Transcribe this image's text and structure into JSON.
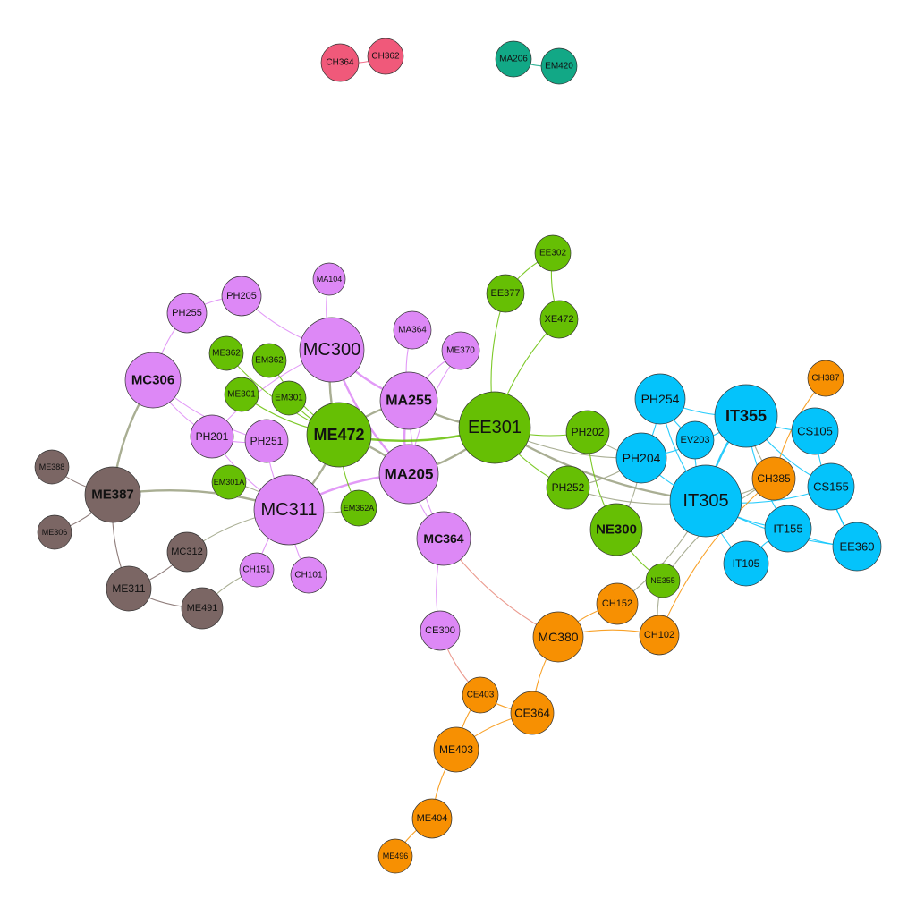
{
  "graph": {
    "colors": {
      "pink": "#f0597a",
      "teal": "#12a886",
      "purple": "#dd88f6",
      "green": "#66bf04",
      "blue": "#04c3fb",
      "orange": "#f79002",
      "brown": "#7b6664"
    },
    "nodes": [
      {
        "id": "CH364",
        "group": "pink"
      },
      {
        "id": "CH362",
        "group": "pink"
      },
      {
        "id": "MA206",
        "group": "teal"
      },
      {
        "id": "EM420",
        "group": "teal"
      },
      {
        "id": "MA104",
        "group": "purple"
      },
      {
        "id": "PH205",
        "group": "purple"
      },
      {
        "id": "PH255",
        "group": "purple"
      },
      {
        "id": "MC300",
        "group": "purple"
      },
      {
        "id": "MA364",
        "group": "purple"
      },
      {
        "id": "ME370",
        "group": "purple"
      },
      {
        "id": "MC306",
        "group": "purple"
      },
      {
        "id": "MA255",
        "group": "purple"
      },
      {
        "id": "PH201",
        "group": "purple"
      },
      {
        "id": "PH251",
        "group": "purple"
      },
      {
        "id": "MA205",
        "group": "purple"
      },
      {
        "id": "MC311",
        "group": "purple"
      },
      {
        "id": "MC364",
        "group": "purple"
      },
      {
        "id": "CH151",
        "group": "purple"
      },
      {
        "id": "CH101",
        "group": "purple"
      },
      {
        "id": "CE300",
        "group": "purple"
      },
      {
        "id": "ME362",
        "group": "green"
      },
      {
        "id": "EM362",
        "group": "green"
      },
      {
        "id": "ME301",
        "group": "green"
      },
      {
        "id": "EM301",
        "group": "green"
      },
      {
        "id": "ME472",
        "group": "green"
      },
      {
        "id": "EM301A",
        "group": "green"
      },
      {
        "id": "EM362A",
        "group": "green"
      },
      {
        "id": "EE302",
        "group": "green"
      },
      {
        "id": "EE377",
        "group": "green"
      },
      {
        "id": "XE472",
        "group": "green"
      },
      {
        "id": "EE301",
        "group": "green"
      },
      {
        "id": "PH202",
        "group": "green"
      },
      {
        "id": "PH252",
        "group": "green"
      },
      {
        "id": "NE300",
        "group": "green"
      },
      {
        "id": "NE355",
        "group": "green"
      },
      {
        "id": "PH254",
        "group": "blue"
      },
      {
        "id": "IT355",
        "group": "blue"
      },
      {
        "id": "EV203",
        "group": "blue"
      },
      {
        "id": "PH204",
        "group": "blue"
      },
      {
        "id": "CS105",
        "group": "blue"
      },
      {
        "id": "IT305",
        "group": "blue"
      },
      {
        "id": "CS155",
        "group": "blue"
      },
      {
        "id": "IT155",
        "group": "blue"
      },
      {
        "id": "EE360",
        "group": "blue"
      },
      {
        "id": "IT105",
        "group": "blue"
      },
      {
        "id": "CH387",
        "group": "orange"
      },
      {
        "id": "CH385",
        "group": "orange"
      },
      {
        "id": "CH152",
        "group": "orange"
      },
      {
        "id": "CH102",
        "group": "orange"
      },
      {
        "id": "MC380",
        "group": "orange"
      },
      {
        "id": "CE403",
        "group": "orange"
      },
      {
        "id": "CE364",
        "group": "orange"
      },
      {
        "id": "ME403",
        "group": "orange"
      },
      {
        "id": "ME404",
        "group": "orange"
      },
      {
        "id": "ME496",
        "group": "orange"
      },
      {
        "id": "ME388",
        "group": "brown"
      },
      {
        "id": "ME387",
        "group": "brown"
      },
      {
        "id": "ME306",
        "group": "brown"
      },
      {
        "id": "MC312",
        "group": "brown"
      },
      {
        "id": "ME311",
        "group": "brown"
      },
      {
        "id": "ME491",
        "group": "brown"
      }
    ],
    "edges": [
      [
        "CH364",
        "CH362"
      ],
      [
        "MA206",
        "EM420"
      ],
      [
        "MA104",
        "MC300"
      ],
      [
        "PH205",
        "PH255"
      ],
      [
        "PH205",
        "MC300"
      ],
      [
        "PH255",
        "MC306"
      ],
      [
        "MC306",
        "PH201"
      ],
      [
        "MC306",
        "PH251"
      ],
      [
        "MC306",
        "ME387"
      ],
      [
        "MC300",
        "MA255"
      ],
      [
        "MC300",
        "ME472"
      ],
      [
        "MC300",
        "MA205"
      ],
      [
        "MC300",
        "PH201"
      ],
      [
        "MA364",
        "MA255"
      ],
      [
        "ME370",
        "MA255"
      ],
      [
        "ME370",
        "MA205"
      ],
      [
        "MA255",
        "MA205"
      ],
      [
        "MA255",
        "ME472"
      ],
      [
        "MA255",
        "EE301"
      ],
      [
        "MA255",
        "MC364"
      ],
      [
        "PH201",
        "PH251"
      ],
      [
        "PH201",
        "MC311"
      ],
      [
        "PH251",
        "MC311"
      ],
      [
        "MA205",
        "MC311"
      ],
      [
        "MA205",
        "ME472"
      ],
      [
        "MA205",
        "EE301"
      ],
      [
        "MA205",
        "MC364"
      ],
      [
        "MC311",
        "CH151"
      ],
      [
        "MC311",
        "CH101"
      ],
      [
        "MC311",
        "ME387"
      ],
      [
        "MC311",
        "MC312"
      ],
      [
        "MC311",
        "EM301A"
      ],
      [
        "MC311",
        "ME472"
      ],
      [
        "MC311",
        "EM362A"
      ],
      [
        "CH151",
        "ME491"
      ],
      [
        "MC364",
        "CE300"
      ],
      [
        "MC364",
        "MC380"
      ],
      [
        "CE300",
        "CE403"
      ],
      [
        "ME362",
        "ME472"
      ],
      [
        "EM362",
        "ME472"
      ],
      [
        "ME301",
        "ME472"
      ],
      [
        "EM301",
        "ME472"
      ],
      [
        "ME472",
        "EM362A"
      ],
      [
        "ME472",
        "EE301"
      ],
      [
        "EE302",
        "EE377"
      ],
      [
        "EE302",
        "XE472"
      ],
      [
        "EE377",
        "EE301"
      ],
      [
        "XE472",
        "EE301"
      ],
      [
        "EE301",
        "PH202"
      ],
      [
        "EE301",
        "PH252"
      ],
      [
        "EE301",
        "PH204"
      ],
      [
        "EE301",
        "IT305"
      ],
      [
        "PH202",
        "PH204"
      ],
      [
        "PH202",
        "NE300"
      ],
      [
        "PH252",
        "PH204"
      ],
      [
        "PH252",
        "IT305"
      ],
      [
        "NE300",
        "NE355"
      ],
      [
        "NE300",
        "PH204"
      ],
      [
        "PH254",
        "IT355"
      ],
      [
        "PH254",
        "IT305"
      ],
      [
        "PH254",
        "EV203"
      ],
      [
        "PH204",
        "PH254"
      ],
      [
        "PH204",
        "IT355"
      ],
      [
        "PH204",
        "IT305"
      ],
      [
        "EV203",
        "IT305"
      ],
      [
        "IT355",
        "IT305"
      ],
      [
        "IT355",
        "CS105"
      ],
      [
        "IT355",
        "CS155"
      ],
      [
        "IT355",
        "IT155"
      ],
      [
        "IT355",
        "CH385"
      ],
      [
        "IT305",
        "CS155"
      ],
      [
        "IT305",
        "IT155"
      ],
      [
        "IT305",
        "IT105"
      ],
      [
        "IT305",
        "EE360"
      ],
      [
        "IT305",
        "CH385"
      ],
      [
        "CS105",
        "EE360"
      ],
      [
        "IT155",
        "EE360"
      ],
      [
        "IT155",
        "IT105"
      ],
      [
        "CS155",
        "EE360"
      ],
      [
        "CH387",
        "CH385"
      ],
      [
        "CH385",
        "NE355"
      ],
      [
        "CH385",
        "CH102"
      ],
      [
        "NE355",
        "CH102"
      ],
      [
        "CH152",
        "MC380"
      ],
      [
        "CH152",
        "IT305"
      ],
      [
        "CH102",
        "MC380"
      ],
      [
        "MC380",
        "CE364"
      ],
      [
        "CE403",
        "CE364"
      ],
      [
        "CE403",
        "ME403"
      ],
      [
        "CE364",
        "ME403"
      ],
      [
        "ME403",
        "ME404"
      ],
      [
        "ME404",
        "ME496"
      ],
      [
        "ME388",
        "ME387"
      ],
      [
        "ME306",
        "ME387"
      ],
      [
        "ME387",
        "ME311"
      ],
      [
        "ME311",
        "MC312"
      ],
      [
        "ME311",
        "ME491"
      ]
    ]
  }
}
